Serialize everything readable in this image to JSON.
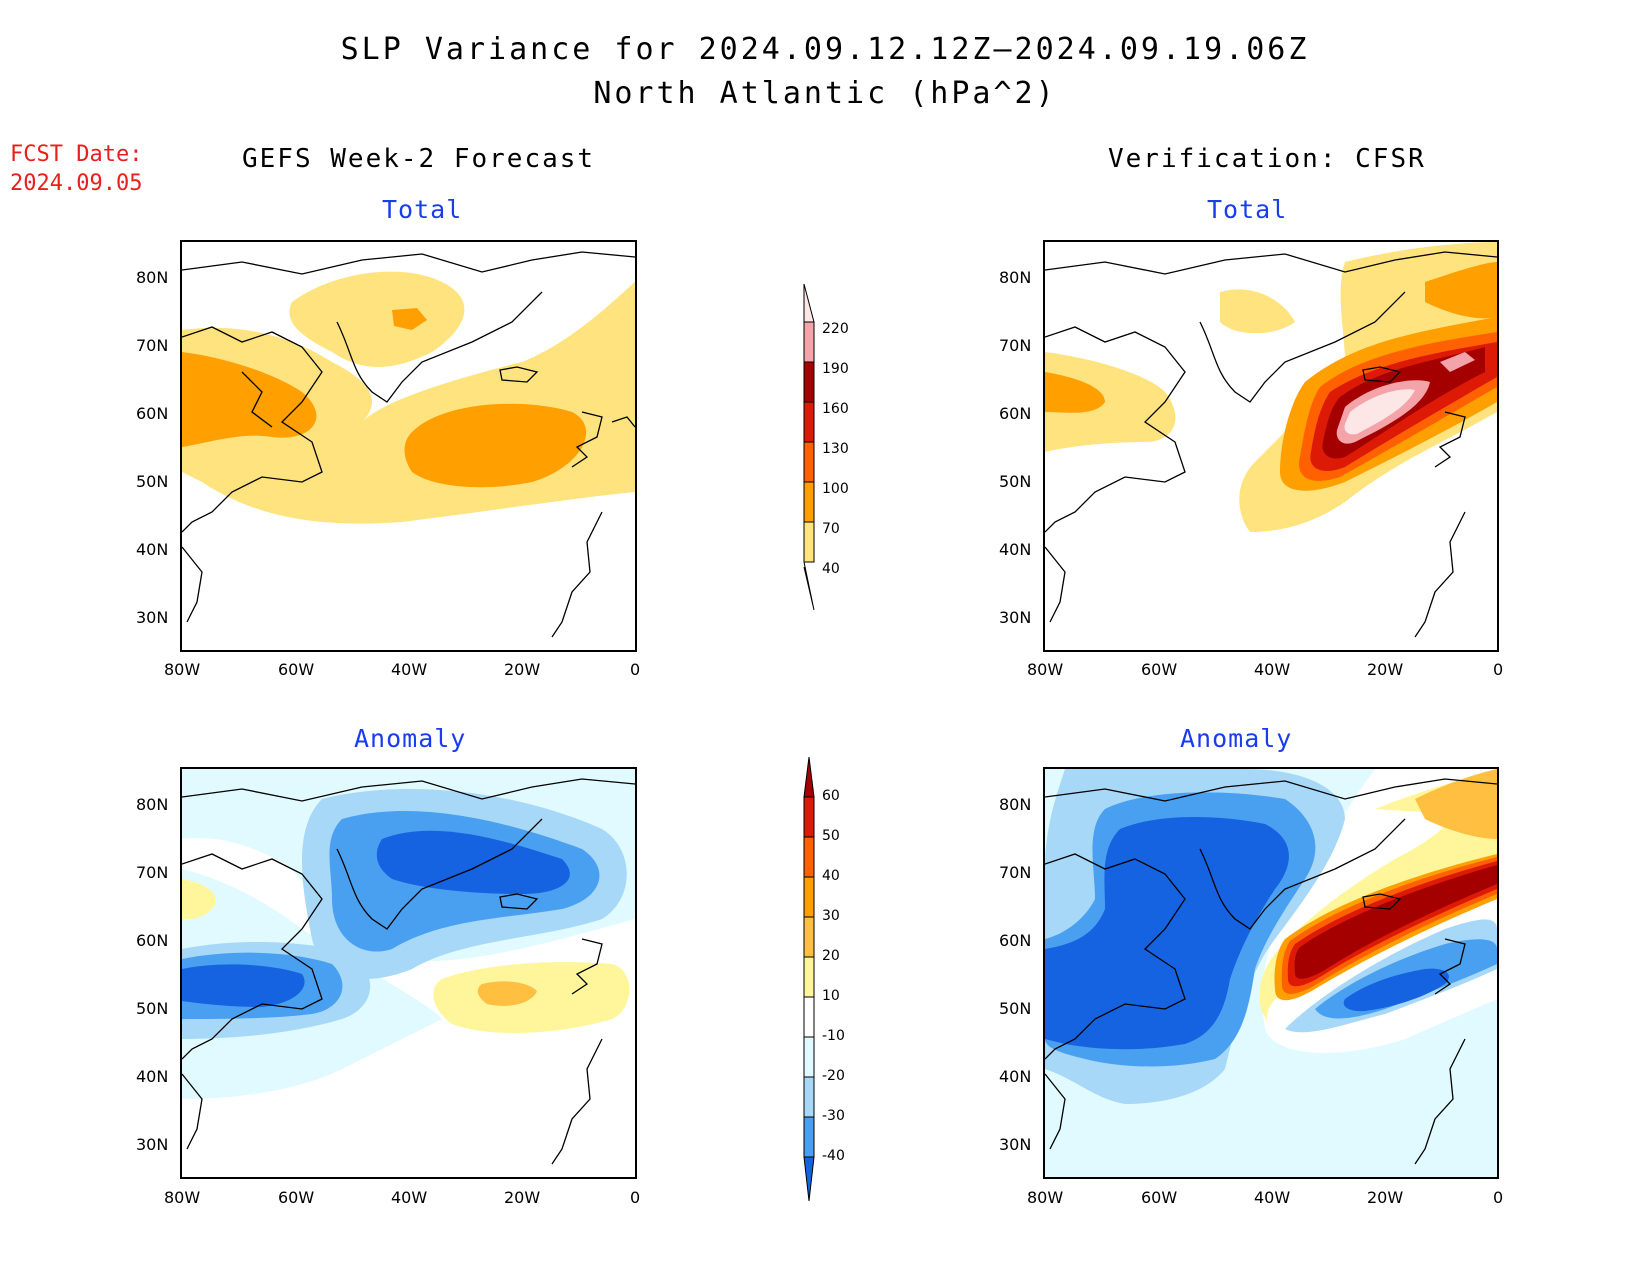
{
  "title_line1": "SLP Variance for 2024.09.12.12Z–2024.09.19.06Z",
  "title_line2": "North Atlantic (hPa^2)",
  "fcst_date_label": "FCST Date:",
  "fcst_date_value": "2024.09.05",
  "left_column_title": "GEFS Week-2 Forecast",
  "right_column_title": "Verification: CFSR",
  "panels": {
    "fc_total_label": "Total",
    "vf_total_label": "Total",
    "fc_anom_label": "Anomaly",
    "vf_anom_label": "Anomaly"
  },
  "lat_labels": [
    "80N",
    "70N",
    "60N",
    "50N",
    "40N",
    "30N"
  ],
  "lon_labels": [
    "80W",
    "60W",
    "40W",
    "20W",
    "0"
  ],
  "total_colorbar": {
    "labels": [
      "220",
      "190",
      "160",
      "130",
      "100",
      "70",
      "40"
    ],
    "colors": [
      "#fde6e6",
      "#f4a3a8",
      "#a50000",
      "#dd1a06",
      "#ff6000",
      "#ff9f00",
      "#ffe37e"
    ]
  },
  "anomaly_colorbar": {
    "labels": [
      "60",
      "50",
      "40",
      "30",
      "20",
      "10",
      "-10",
      "-20",
      "-30",
      "-40"
    ],
    "colors": [
      "#a50000",
      "#dd1a06",
      "#ff6000",
      "#ff9f00",
      "#ffbf40",
      "#fff59a",
      "#ffffff",
      "#e0faff",
      "#a8d8f8",
      "#4aa0f0",
      "#1563e0"
    ]
  },
  "chart_data": [
    {
      "type": "heatmap",
      "name": "GEFS Week-2 Forecast Total",
      "levels": [
        40,
        70,
        100,
        130,
        160,
        190,
        220
      ]
    },
    {
      "type": "heatmap",
      "name": "Verification CFSR Total",
      "levels": [
        40,
        70,
        100,
        130,
        160,
        190,
        220
      ]
    },
    {
      "type": "heatmap",
      "name": "GEFS Week-2 Forecast Anomaly",
      "levels": [
        -40,
        -30,
        -20,
        -10,
        10,
        20,
        30,
        40,
        50,
        60
      ]
    },
    {
      "type": "heatmap",
      "name": "Verification CFSR Anomaly",
      "levels": [
        -40,
        -30,
        -20,
        -10,
        10,
        20,
        30,
        40,
        50,
        60
      ]
    }
  ]
}
